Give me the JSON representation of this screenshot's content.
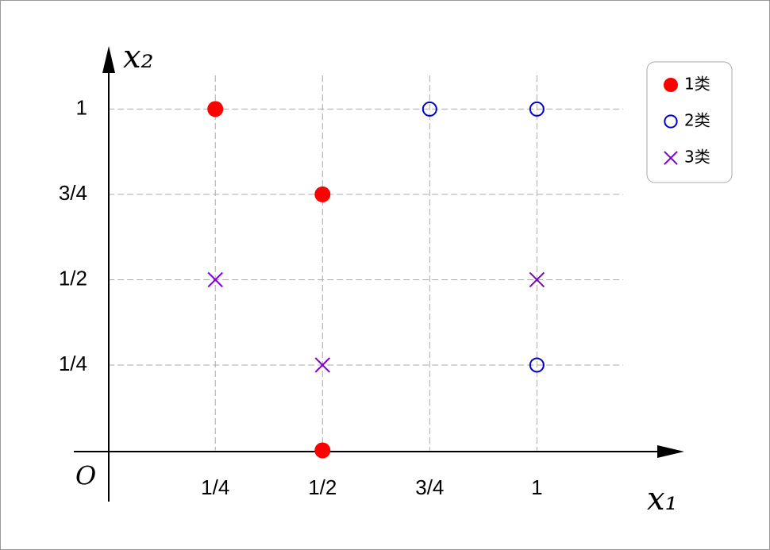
{
  "chart_data": {
    "type": "scatter",
    "x_label": "x₁",
    "y_label": "x₂",
    "origin_label": "O",
    "xlim": [
      -0.08,
      1.34
    ],
    "ylim": [
      -0.15,
      1.18
    ],
    "xticks": [
      {
        "value": 0.25,
        "label": "1/4"
      },
      {
        "value": 0.5,
        "label": "1/2"
      },
      {
        "value": 0.75,
        "label": "3/4"
      },
      1
    ],
    "yticks": [
      {
        "value": 0.25,
        "label": "1/4"
      },
      {
        "value": 0.5,
        "label": "1/2"
      },
      {
        "value": 0.75,
        "label": "3/4"
      },
      1
    ],
    "grid": true,
    "legend": "upper right",
    "series": [
      {
        "name": "1类",
        "color": "#ff0000",
        "marker": "filled-circle",
        "x": [
          0.25,
          0.5,
          0.5
        ],
        "values": [
          1,
          0.75,
          0
        ]
      },
      {
        "name": "2类",
        "color": "#0000cc",
        "marker": "open-circle",
        "x": [
          0.75,
          1,
          1
        ],
        "values": [
          1,
          1,
          0.25
        ]
      },
      {
        "name": "3类",
        "color": "#8000d0",
        "marker": "cross",
        "x": [
          0.25,
          1,
          0.5
        ],
        "values": [
          0.5,
          0.5,
          0.25
        ]
      }
    ]
  }
}
